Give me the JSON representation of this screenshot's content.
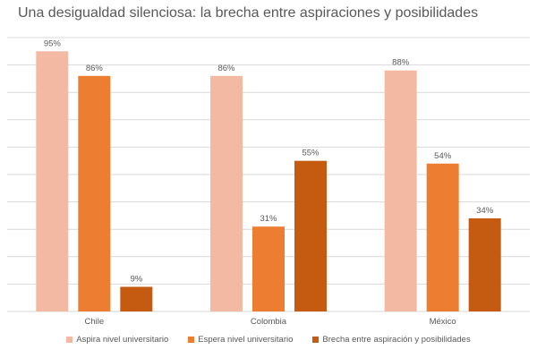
{
  "chart_data": {
    "type": "bar",
    "title": "Una desigualdad silenciosa: la brecha entre aspiraciones y posibilidades",
    "xlabel": "",
    "ylabel": "",
    "categories": [
      "Chile",
      "Colombia",
      "México"
    ],
    "series": [
      {
        "name": "Aspira nivel universitario",
        "values": [
          95,
          86,
          88
        ],
        "labels": [
          "95%",
          "86%",
          "88%"
        ],
        "color": "#F4B9A3"
      },
      {
        "name": "Espera nivel universitario",
        "values": [
          86,
          31,
          54
        ],
        "labels": [
          "86%",
          "31%",
          "54%"
        ],
        "color": "#ED7D31"
      },
      {
        "name": "Brecha entre aspiración y posibilidades",
        "values": [
          9,
          55,
          34
        ],
        "labels": [
          "9%",
          "55%",
          "34%"
        ],
        "color": "#C55A11"
      }
    ],
    "ylim": [
      0,
      100
    ],
    "grid": true,
    "legend": "bottom",
    "gridline_color": "#D9D9D9"
  }
}
